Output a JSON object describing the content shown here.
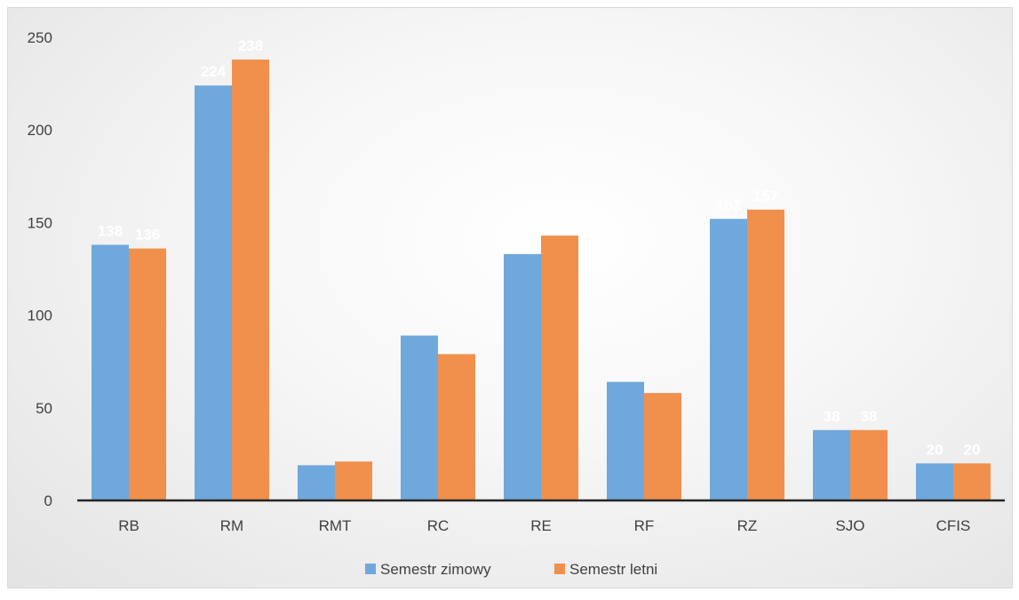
{
  "chart_data": {
    "type": "bar",
    "categories": [
      "RB",
      "RM",
      "RMT",
      "RC",
      "RE",
      "RF",
      "RZ",
      "SJO",
      "CFIS"
    ],
    "series": [
      {
        "name": "Semestr zimowy",
        "color": "#6fa8dc",
        "values": [
          138,
          224,
          19,
          89,
          133,
          64,
          152,
          38,
          20
        ],
        "labels": [
          "138",
          "224",
          "",
          "",
          "",
          "",
          "152",
          "38",
          "20"
        ]
      },
      {
        "name": "Semestr letni",
        "color": "#f0904c",
        "values": [
          136,
          238,
          21,
          79,
          143,
          58,
          157,
          38,
          20
        ],
        "labels": [
          "136",
          "238",
          "",
          "",
          "",
          "",
          "157",
          "38",
          "20"
        ]
      }
    ],
    "yticks": [
      "0",
      "50",
      "100",
      "150",
      "200",
      "250"
    ],
    "ylim": [
      0,
      250
    ],
    "grid": false,
    "legend_position": "bottom",
    "title": "",
    "xlabel": "",
    "ylabel": ""
  }
}
